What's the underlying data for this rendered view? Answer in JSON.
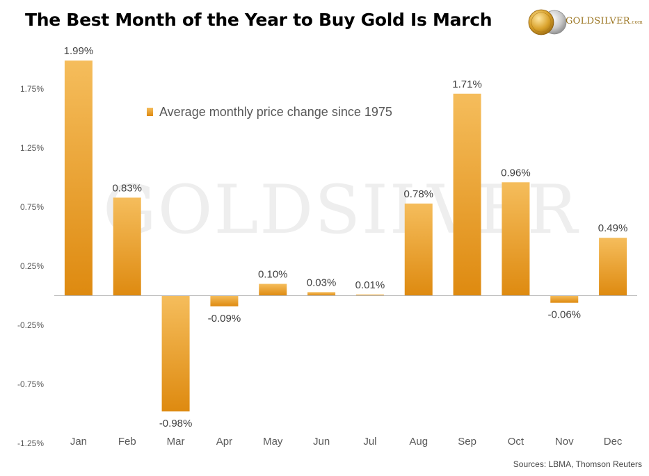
{
  "title": "The Best Month of the Year to Buy Gold Is March",
  "logo": {
    "text": "GOLDSILVER",
    "suffix": ".com"
  },
  "watermark": "GOLDSILVER",
  "source": "Sources: LBMA, Thomson Reuters",
  "colors": {
    "bar_top": "#f5bd5c",
    "bar_bottom": "#de8a10",
    "axis": "#b8b8b8",
    "watermark": "#eeeeee"
  },
  "chart_data": {
    "type": "bar",
    "categories": [
      "Jan",
      "Feb",
      "Mar",
      "Apr",
      "May",
      "Jun",
      "Jul",
      "Aug",
      "Sep",
      "Oct",
      "Nov",
      "Dec"
    ],
    "series": [
      {
        "name": "Average monthly price change since 1975",
        "values": [
          1.99,
          0.83,
          -0.98,
          -0.09,
          0.1,
          0.03,
          0.01,
          0.78,
          1.71,
          0.96,
          -0.06,
          0.49
        ],
        "labels": [
          "1.99%",
          "0.83%",
          "-0.98%",
          "-0.09%",
          "0.10%",
          "0.03%",
          "0.01%",
          "0.78%",
          "1.71%",
          "0.96%",
          "-0.06%",
          "0.49%"
        ]
      }
    ],
    "yticks": [
      1.75,
      1.25,
      0.75,
      0.25,
      -0.25,
      -0.75,
      -1.25
    ],
    "ytick_labels": [
      "1.75%",
      "1.25%",
      "0.75%",
      "0.25%",
      "-0.25%",
      "-0.75%",
      "-1.25%"
    ],
    "ylim": [
      -1.35,
      2.15
    ],
    "grid": false,
    "legend_position": "top-center",
    "xlabel": "",
    "ylabel": ""
  }
}
